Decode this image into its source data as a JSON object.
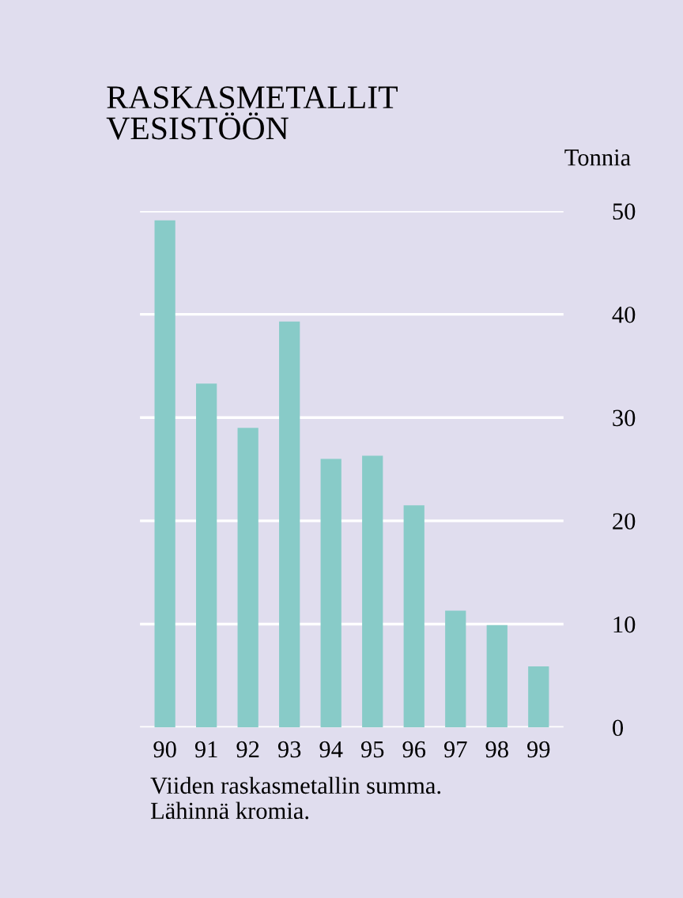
{
  "chart_data": {
    "type": "bar",
    "title": "RASKASMETALLIT\nVESISTÖÖN",
    "ylabel": "Tonnia",
    "categories": [
      "90",
      "91",
      "92",
      "93",
      "94",
      "95",
      "96",
      "97",
      "98",
      "99"
    ],
    "values": [
      49.1,
      33.3,
      29.0,
      39.3,
      26.0,
      26.3,
      21.5,
      11.3,
      9.9,
      5.9
    ],
    "color": "#88cbc8",
    "ylim": [
      0,
      50
    ],
    "yticks": [
      0,
      10,
      20,
      30,
      40,
      50
    ],
    "grid": "y",
    "annotations": [
      "Viiden raskasmetallin summa.\nLähinnä kromia."
    ]
  }
}
